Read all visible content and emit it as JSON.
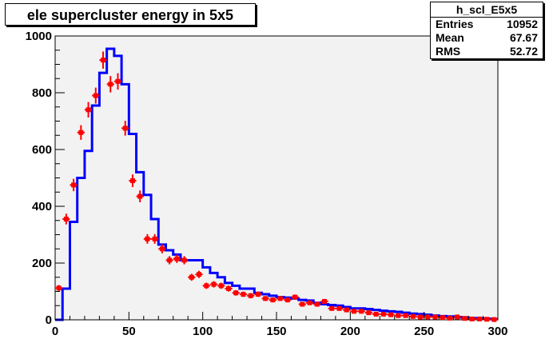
{
  "title": "ele supercluster energy in 5x5",
  "stats": {
    "name": "h_scl_E5x5",
    "rows": [
      {
        "label": "Entries",
        "value": "10952"
      },
      {
        "label": "Mean",
        "value": "67.67"
      },
      {
        "label": "RMS",
        "value": "52.72"
      }
    ]
  },
  "colors": {
    "frame_bg": "#f2f2f2",
    "histogram_line": "#0000ff",
    "markers": "#ff0000"
  },
  "chart_data": {
    "type": "line",
    "xlim": [
      0,
      300
    ],
    "ylim": [
      0,
      1000
    ],
    "x_ticks": [
      0,
      50,
      100,
      150,
      200,
      250,
      300
    ],
    "y_ticks": [
      0,
      200,
      400,
      600,
      800,
      1000
    ],
    "bin_width": 5,
    "series": [
      {
        "style": "step-histogram",
        "bin_edges_start": 0,
        "values": [
          0,
          110,
          345,
          500,
          595,
          755,
          870,
          955,
          930,
          830,
          655,
          520,
          440,
          355,
          265,
          245,
          230,
          210,
          210,
          210,
          185,
          165,
          150,
          130,
          120,
          110,
          110,
          95,
          90,
          85,
          80,
          78,
          75,
          70,
          68,
          60,
          55,
          52,
          50,
          45,
          40,
          40,
          38,
          35,
          32,
          30,
          28,
          25,
          22,
          20,
          18,
          15,
          13,
          12,
          10,
          8,
          6,
          5,
          4,
          2
        ]
      },
      {
        "style": "error-points",
        "x": [
          2.5,
          7.5,
          12.5,
          17.5,
          22.5,
          27.5,
          32.5,
          37.5,
          42.5,
          47.5,
          52.5,
          57.5,
          62.5,
          67.5,
          72.5,
          77.5,
          82.5,
          87.5,
          92.5,
          97.5,
          102.5,
          107.5,
          112.5,
          117.5,
          122.5,
          127.5,
          132.5,
          137.5,
          142.5,
          147.5,
          152.5,
          157.5,
          162.5,
          167.5,
          172.5,
          177.5,
          182.5,
          187.5,
          192.5,
          197.5,
          202.5,
          207.5,
          212.5,
          217.5,
          222.5,
          227.5,
          232.5,
          237.5,
          242.5,
          247.5,
          252.5,
          257.5,
          262.5,
          267.5,
          272.5,
          277.5,
          282.5,
          287.5,
          292.5,
          297.5
        ],
        "values": [
          112,
          355,
          475,
          660,
          740,
          790,
          915,
          830,
          840,
          675,
          490,
          435,
          285,
          285,
          250,
          210,
          215,
          210,
          150,
          160,
          120,
          125,
          120,
          110,
          95,
          90,
          85,
          90,
          75,
          70,
          75,
          70,
          80,
          55,
          60,
          55,
          65,
          40,
          40,
          35,
          30,
          30,
          25,
          20,
          20,
          18,
          15,
          15,
          12,
          10,
          10,
          10,
          8,
          6,
          10,
          5,
          3,
          3,
          2,
          1
        ]
      }
    ]
  }
}
